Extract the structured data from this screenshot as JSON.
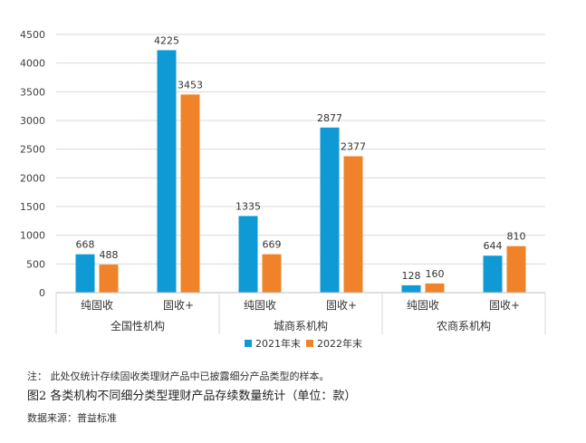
{
  "chart_data": {
    "type": "bar",
    "ylim": [
      0,
      4500
    ],
    "ytick_step": 500,
    "yticks": [
      "0",
      "500",
      "1000",
      "1500",
      "2000",
      "2500",
      "3000",
      "3500",
      "4000",
      "4500"
    ],
    "grid": true,
    "legend_position": "bottom-center",
    "groups": [
      {
        "name": "全国性机构",
        "categories": [
          {
            "label": "纯固收",
            "values": [
              668,
              488
            ]
          },
          {
            "label": "固收+",
            "values": [
              4225,
              3453
            ]
          }
        ]
      },
      {
        "name": "城商系机构",
        "categories": [
          {
            "label": "纯固收",
            "values": [
              1335,
              669
            ]
          },
          {
            "label": "固收+",
            "values": [
              2877,
              2377
            ]
          }
        ]
      },
      {
        "name": "农商系机构",
        "categories": [
          {
            "label": "纯固收",
            "values": [
              128,
              160
            ]
          },
          {
            "label": "固收+",
            "values": [
              644,
              810
            ]
          }
        ]
      }
    ],
    "series": [
      {
        "name": "2021年末",
        "color": "#0f9ad6"
      },
      {
        "name": "2022年末",
        "color": "#f0832a"
      }
    ]
  },
  "footer": {
    "note": "注：  此处仅统计存续固收类理财产品中已披露细分产品类型的样本。",
    "caption": "图2  各类机构不同细分类型理财产品存续数量统计（单位：款）",
    "source": "数据来源：普益标准"
  }
}
